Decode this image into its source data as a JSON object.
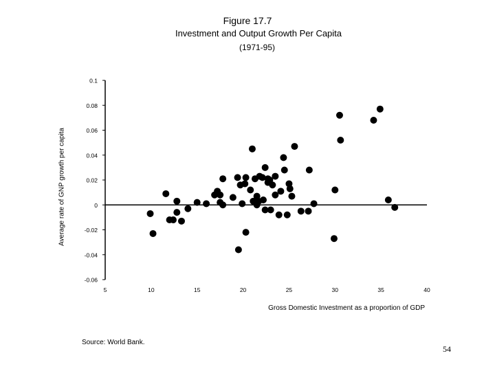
{
  "slide": {
    "page_number": "54"
  },
  "chart_data": {
    "type": "scatter",
    "figure_label": "Figure 17.7",
    "title": "Investment and Output Growth Per Capita",
    "subtitle": "(1971-95)",
    "xlabel": "Gross Domestic Investment as a proportion of GDP",
    "ylabel": "Average rate of GNP growth per capita",
    "source": "Source:  World Bank.",
    "xlim": [
      5,
      40
    ],
    "ylim": [
      -0.06,
      0.1
    ],
    "x_ticks": [
      "5",
      "10",
      "15",
      "20",
      "25",
      "30",
      "35",
      "40"
    ],
    "y_ticks": [
      "0.1",
      "0.08",
      "0.06",
      "0.04",
      "0.02",
      "0",
      "-0.02",
      "-0.04",
      "-0.06"
    ],
    "series": [
      {
        "name": "Countries",
        "points": [
          [
            9.9,
            -0.007
          ],
          [
            10.2,
            -0.023
          ],
          [
            11.6,
            0.009
          ],
          [
            12.0,
            -0.012
          ],
          [
            12.4,
            -0.012
          ],
          [
            12.8,
            -0.006
          ],
          [
            12.8,
            0.003
          ],
          [
            13.3,
            -0.013
          ],
          [
            14.0,
            -0.003
          ],
          [
            15.0,
            0.002
          ],
          [
            16.0,
            0.001
          ],
          [
            16.9,
            0.008
          ],
          [
            17.2,
            0.011
          ],
          [
            17.5,
            0.008
          ],
          [
            17.5,
            0.002
          ],
          [
            17.8,
            0.021
          ],
          [
            17.8,
            0.0
          ],
          [
            18.9,
            0.006
          ],
          [
            19.4,
            0.022
          ],
          [
            19.5,
            -0.036
          ],
          [
            19.7,
            0.016
          ],
          [
            19.9,
            0.001
          ],
          [
            20.2,
            0.017
          ],
          [
            20.3,
            0.022
          ],
          [
            20.3,
            -0.022
          ],
          [
            20.8,
            0.012
          ],
          [
            21.0,
            0.045
          ],
          [
            21.1,
            0.003
          ],
          [
            21.3,
            0.021
          ],
          [
            21.5,
            0.007
          ],
          [
            21.5,
            0.0
          ],
          [
            21.7,
            0.003
          ],
          [
            21.8,
            0.023
          ],
          [
            22.1,
            0.022
          ],
          [
            22.2,
            0.004
          ],
          [
            22.4,
            -0.004
          ],
          [
            22.4,
            0.03
          ],
          [
            22.7,
            0.018
          ],
          [
            22.7,
            0.021
          ],
          [
            22.9,
            0.02
          ],
          [
            23.0,
            -0.004
          ],
          [
            23.2,
            0.016
          ],
          [
            23.5,
            0.023
          ],
          [
            23.5,
            0.008
          ],
          [
            23.9,
            -0.008
          ],
          [
            24.1,
            0.011
          ],
          [
            24.4,
            0.038
          ],
          [
            24.5,
            0.028
          ],
          [
            24.8,
            -0.008
          ],
          [
            25.0,
            0.017
          ],
          [
            25.1,
            0.013
          ],
          [
            25.3,
            0.007
          ],
          [
            25.6,
            0.047
          ],
          [
            26.3,
            -0.005
          ],
          [
            27.1,
            -0.005
          ],
          [
            27.2,
            0.028
          ],
          [
            27.7,
            0.001
          ],
          [
            29.9,
            -0.027
          ],
          [
            30.0,
            0.012
          ],
          [
            30.5,
            0.072
          ],
          [
            30.6,
            0.052
          ],
          [
            34.2,
            0.068
          ],
          [
            34.9,
            0.077
          ],
          [
            35.8,
            0.004
          ],
          [
            36.5,
            -0.002
          ]
        ]
      }
    ]
  }
}
